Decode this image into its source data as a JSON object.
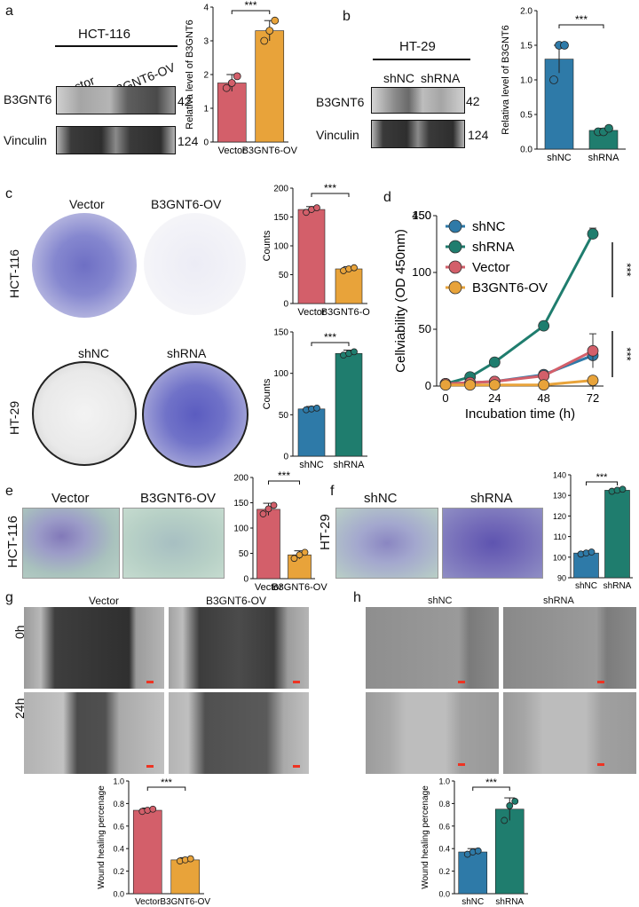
{
  "panels": {
    "a": {
      "letter": "a",
      "cell_line": "HCT-116",
      "lanes": [
        "Vector",
        "B3GNT6-OV"
      ],
      "rows": [
        {
          "protein": "B3GNT6",
          "kda": "42"
        },
        {
          "protein": "Vinculin",
          "kda": "124"
        }
      ],
      "chart": {
        "ylabel": "Relativa  level of B3GNT6",
        "ticks": [
          "0",
          "1",
          "2",
          "3",
          "4"
        ],
        "sig": "***",
        "categories": [
          "Vector",
          "B3GNT6-OV"
        ]
      }
    },
    "b": {
      "letter": "b",
      "cell_line": "HT-29",
      "lanes": [
        "shNC",
        "shRNA"
      ],
      "rows": [
        {
          "protein": "B3GNT6",
          "kda": "42"
        },
        {
          "protein": "Vinculin",
          "kda": "124"
        }
      ],
      "chart": {
        "ylabel": "Relativa  level of B3GNT6",
        "ticks": [
          "0.0",
          "0.5",
          "1.0",
          "1.5",
          "2.0"
        ],
        "sig": "***",
        "categories": [
          "shNC",
          "shRNA"
        ]
      }
    },
    "c": {
      "letter": "c",
      "row1": {
        "cell_line": "HCT-116",
        "conditions": [
          "Vector",
          "B3GNT6-OV"
        ]
      },
      "row2": {
        "cell_line": "HT-29",
        "conditions": [
          "shNC",
          "shRNA"
        ]
      },
      "chart1": {
        "ylabel": "Counts",
        "ticks": [
          "0",
          "50",
          "100",
          "150",
          "200"
        ],
        "sig": "***",
        "categories": [
          "Vector",
          "B3GNT6-OV"
        ]
      },
      "chart2": {
        "ylabel": "Counts",
        "ticks": [
          "0",
          "50",
          "100",
          "150"
        ],
        "sig": "***",
        "categories": [
          "shNC",
          "shRNA"
        ]
      }
    },
    "d": {
      "letter": "d",
      "ylabel": "Cellviability (OD 450nm)",
      "xlabel": "Incubation time (h)",
      "yticks": [
        "0",
        "50",
        "100",
        "150",
        "450"
      ],
      "xticks": [
        "0",
        "24",
        "48",
        "72"
      ],
      "legend": [
        "shNC",
        "shRNA",
        "Vector",
        "B3GNT6-OV"
      ],
      "sig1": "***",
      "sig2": "***"
    },
    "e": {
      "letter": "e",
      "cell_line": "HCT-116",
      "conditions": [
        "Vector",
        "B3GNT6-OV"
      ],
      "chart": {
        "ticks": [
          "0",
          "50",
          "100",
          "150",
          "200"
        ],
        "sig": "***",
        "categories": [
          "Vector",
          "B3GNT6-OV"
        ]
      }
    },
    "f": {
      "letter": "f",
      "cell_line": "HT-29",
      "conditions": [
        "shNC",
        "shRNA"
      ],
      "chart": {
        "ticks": [
          "90",
          "100",
          "110",
          "120",
          "130",
          "140"
        ],
        "sig": "***",
        "categories": [
          "shNC",
          "shRNA"
        ]
      }
    },
    "g": {
      "letter": "g",
      "conditions": [
        "Vector",
        "B3GNT6-OV"
      ],
      "times": [
        "0h",
        "24h"
      ],
      "chart": {
        "ylabel": "Wound healing percenage",
        "ticks": [
          "0.0",
          "0.2",
          "0.4",
          "0.6",
          "0.8",
          "1.0"
        ],
        "sig": "***",
        "categories": [
          "Vector",
          "B3GNT6-OV"
        ]
      }
    },
    "h": {
      "letter": "h",
      "conditions": [
        "shNC",
        "shRNA"
      ],
      "chart": {
        "ylabel": "Wound healing percenage",
        "ticks": [
          "0.0",
          "0.2",
          "0.4",
          "0.6",
          "0.8",
          "1.0"
        ],
        "sig": "***",
        "categories": [
          "shNC",
          "shRNA"
        ]
      }
    }
  },
  "chart_data": [
    {
      "id": "a",
      "type": "bar",
      "categories": [
        "Vector",
        "B3GNT6-OV"
      ],
      "values": [
        1.75,
        3.3
      ],
      "errors": [
        0.25,
        0.3
      ],
      "points": [
        [
          1.6,
          1.75,
          1.95
        ],
        [
          3.0,
          3.3,
          3.6
        ]
      ],
      "ylim": [
        0,
        4
      ],
      "ylabel": "Relativa  level of B3GNT6",
      "colors": [
        "#d35f6a",
        "#e8a33a"
      ]
    },
    {
      "id": "b",
      "type": "bar",
      "categories": [
        "shNC",
        "shRNA"
      ],
      "values": [
        1.3,
        0.27
      ],
      "errors": [
        0.2,
        0.03
      ],
      "points": [
        [
          1.0,
          1.5,
          1.5
        ],
        [
          0.25,
          0.25,
          0.3
        ]
      ],
      "ylim": [
        0,
        2
      ],
      "ylabel": "Relativa  level of B3GNT6",
      "colors": [
        "#2e7aa8",
        "#1f7d6e"
      ]
    },
    {
      "id": "c1",
      "type": "bar",
      "categories": [
        "Vector",
        "B3GNT6-OV"
      ],
      "values": [
        163,
        60
      ],
      "errors": [
        5,
        4
      ],
      "points": [
        [
          158,
          163,
          166
        ],
        [
          57,
          60,
          62
        ]
      ],
      "ylim": [
        0,
        200
      ],
      "ylabel": "Counts",
      "colors": [
        "#d35f6a",
        "#e8a33a"
      ]
    },
    {
      "id": "c2",
      "type": "bar",
      "categories": [
        "shNC",
        "shRNA"
      ],
      "values": [
        57,
        124
      ],
      "errors": [
        3,
        4
      ],
      "points": [
        [
          56,
          57,
          58
        ],
        [
          122,
          124,
          126
        ]
      ],
      "ylim": [
        0,
        150
      ],
      "ylabel": "Counts",
      "colors": [
        "#2e7aa8",
        "#1f7d6e"
      ]
    },
    {
      "id": "d",
      "type": "line",
      "x": [
        0,
        12,
        24,
        48,
        72
      ],
      "ylim": [
        0,
        150
      ],
      "xlabel": "Incubation time (h)",
      "ylabel": "Cellviability (OD 450nm)",
      "series": [
        {
          "name": "shNC",
          "values": [
            2,
            3,
            4,
            10,
            27
          ],
          "error": [
            0,
            0,
            0,
            0,
            5
          ],
          "color": "#2e7aa8"
        },
        {
          "name": "shRNA",
          "values": [
            2,
            8,
            21,
            53,
            134
          ],
          "error": [
            0,
            0,
            0,
            0,
            5
          ],
          "color": "#1f7d6e"
        },
        {
          "name": "Vector",
          "values": [
            2,
            3,
            4,
            9,
            31
          ],
          "error": [
            0,
            0,
            0,
            0,
            15
          ],
          "color": "#d35f6a"
        },
        {
          "name": "B3GNT6-OV",
          "values": [
            1,
            1,
            1,
            1,
            5
          ],
          "error": [
            0,
            0,
            0,
            0,
            1
          ],
          "color": "#e8a33a"
        }
      ]
    },
    {
      "id": "e",
      "type": "bar",
      "categories": [
        "Vector",
        "B3GNT6-OV"
      ],
      "values": [
        137,
        47
      ],
      "errors": [
        12,
        8
      ],
      "points": [
        [
          128,
          138,
          145
        ],
        [
          40,
          47,
          52
        ]
      ],
      "ylim": [
        0,
        200
      ],
      "colors": [
        "#d35f6a",
        "#e8a33a"
      ]
    },
    {
      "id": "f",
      "type": "bar",
      "categories": [
        "shNC",
        "shRNA"
      ],
      "values": [
        102,
        132.5
      ],
      "errors": [
        0.7,
        0.5
      ],
      "points": [
        [
          101.5,
          102,
          102.5
        ],
        [
          132,
          132.5,
          133
        ]
      ],
      "ylim": [
        90,
        140
      ],
      "colors": [
        "#2e7aa8",
        "#1f7d6e"
      ]
    },
    {
      "id": "g",
      "type": "bar",
      "categories": [
        "Vector",
        "B3GNT6-OV"
      ],
      "values": [
        0.74,
        0.3
      ],
      "errors": [
        0.02,
        0.02
      ],
      "points": [
        [
          0.73,
          0.74,
          0.75
        ],
        [
          0.29,
          0.3,
          0.31
        ]
      ],
      "ylim": [
        0,
        1.0
      ],
      "ylabel": "Wound healing percenage",
      "colors": [
        "#d35f6a",
        "#e8a33a"
      ]
    },
    {
      "id": "h",
      "type": "bar",
      "categories": [
        "shNC",
        "shRNA"
      ],
      "values": [
        0.37,
        0.75
      ],
      "errors": [
        0.03,
        0.1
      ],
      "points": [
        [
          0.35,
          0.37,
          0.38
        ],
        [
          0.65,
          0.78,
          0.82
        ]
      ],
      "ylim": [
        0,
        1.0
      ],
      "ylabel": "Wound healing percenage",
      "colors": [
        "#2e7aa8",
        "#1f7d6e"
      ]
    }
  ]
}
